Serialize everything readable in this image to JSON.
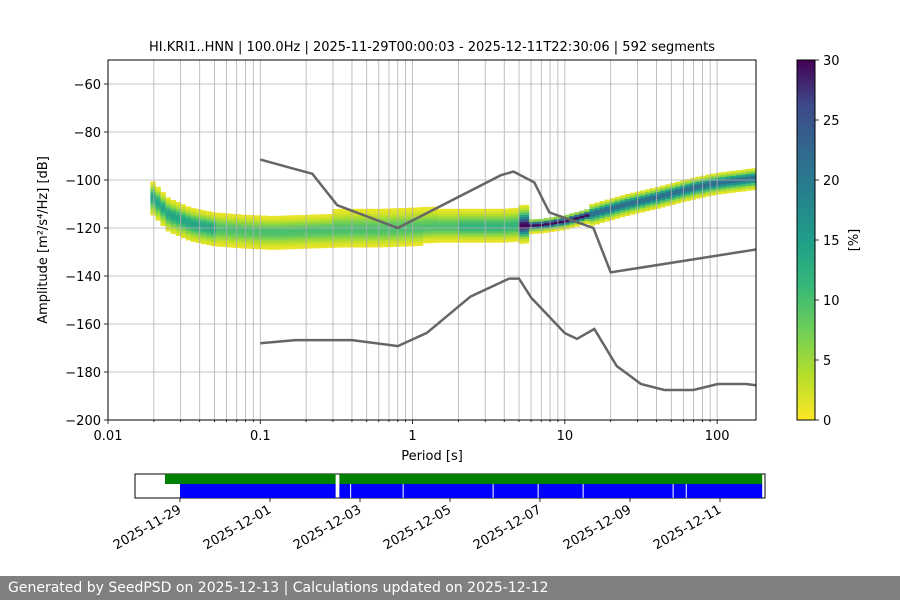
{
  "footer": {
    "text": "Generated by SeedPSD on 2025-12-13 | Calculations updated on 2025-12-12"
  },
  "colors": {
    "nlnm_nhnm": "#666666",
    "availability_top": "#008000",
    "availability_bottom": "#0000ff",
    "grid": "#b0b0b0"
  },
  "chart_data": [
    {
      "type": "heatmap",
      "title": "HI.KRI1..HNN | 100.0Hz | 2025-11-29T00:00:03 - 2025-12-11T22:30:06 | 592 segments",
      "xlabel": "Period [s]",
      "ylabel": "Amplitude [m²/s⁴/Hz] [dB]",
      "xscale": "log",
      "xlim": [
        0.01,
        180
      ],
      "ylim": [
        -200,
        -50
      ],
      "xticks": [
        0.01,
        0.1,
        1,
        10,
        100
      ],
      "xtick_labels": [
        "0.01",
        "0.1",
        "1",
        "10",
        "100"
      ],
      "yticks": [
        -200,
        -180,
        -160,
        -140,
        -120,
        -100,
        -80,
        -60
      ],
      "ytick_labels": [
        "−200",
        "−180",
        "−160",
        "−140",
        "−120",
        "−100",
        "−80",
        "−60"
      ],
      "grid": true,
      "colorbar": {
        "label": "[%]",
        "range": [
          0,
          30
        ],
        "ticks": [
          "0",
          "5",
          "10",
          "15",
          "20",
          "25",
          "30"
        ],
        "colormap": "viridis_r"
      },
      "psd_mode_curve": {
        "period": [
          0.019,
          0.025,
          0.035,
          0.05,
          0.08,
          0.12,
          0.2,
          0.35,
          0.6,
          1.0,
          1.5,
          2.5,
          4.0,
          5.0,
          7.0,
          10,
          15,
          25,
          40,
          70,
          100,
          180
        ],
        "db": [
          -106,
          -114,
          -118,
          -120,
          -121,
          -121.5,
          -121,
          -120.5,
          -120.5,
          -120,
          -119.5,
          -119.5,
          -119.5,
          -119,
          -118.5,
          -117,
          -114,
          -110,
          -107,
          -103,
          -101,
          -99
        ]
      },
      "nhnm": {
        "period": [
          0.1,
          0.22,
          0.32,
          0.8,
          3.8,
          4.6,
          6.3,
          7.9,
          15.4,
          20,
          354.8
        ],
        "db": [
          -91.5,
          -97.4,
          -110.5,
          -120,
          -98,
          -96.5,
          -101,
          -113.5,
          -120,
          -138.5,
          -126
        ]
      },
      "nlnm": {
        "period": [
          0.1,
          0.17,
          0.4,
          0.8,
          1.24,
          2.4,
          4.3,
          5.0,
          6.0,
          10,
          12,
          15.6,
          21.9,
          31.6,
          45,
          70,
          101,
          154,
          180
        ],
        "db": [
          -168,
          -166.7,
          -166.7,
          -169.2,
          -163.7,
          -148.6,
          -141.1,
          -141.1,
          -149,
          -163.8,
          -166.2,
          -162.1,
          -177.5,
          -185,
          -187.5,
          -187.5,
          -185,
          -185,
          -185.5
        ]
      }
    },
    {
      "type": "bar",
      "title": "",
      "x_start": "2025-11-28",
      "x_end": "2025-12-12",
      "xtick_labels": [
        "2025-11-29",
        "2025-12-01",
        "2025-12-03",
        "2025-12-05",
        "2025-12-07",
        "2025-12-09",
        "2025-12-11"
      ],
      "series": [
        {
          "name": "",
          "spans": [
            [
              "2025-11-28T16:00",
              "2025-12-02T11:00"
            ],
            [
              "2025-12-02T13:00",
              "2025-12-11T22:30"
            ]
          ]
        },
        {
          "name": "",
          "spans": [
            [
              "2025-11-29T00:00",
              "2025-12-02T11:00"
            ],
            [
              "2025-12-02T13:00",
              "2025-12-11T22:30"
            ]
          ],
          "gaps": [
            "2025-12-02T19:00",
            "2025-12-03T23:00",
            "2025-12-05T23:00",
            "2025-12-06T23:00",
            "2025-12-07T23:00",
            "2025-12-09T23:00",
            "2025-12-10T06:00"
          ]
        }
      ]
    }
  ]
}
